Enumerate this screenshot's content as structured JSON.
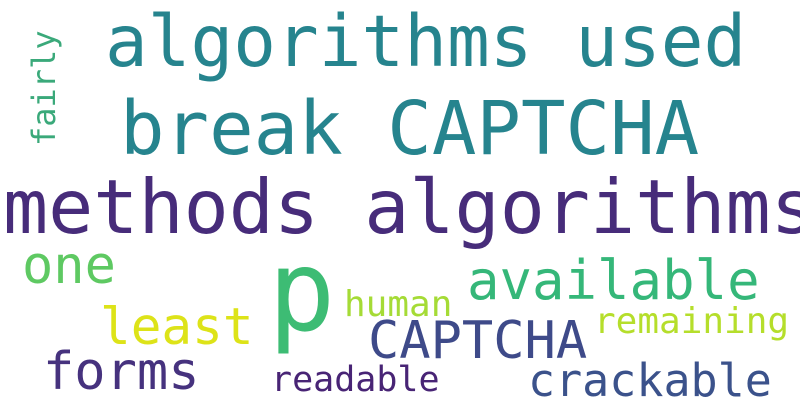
{
  "words": [
    {
      "text": "algorithms used",
      "color": "#26848e"
    },
    {
      "text": "break CAPTCHA",
      "color": "#26848e"
    },
    {
      "text": "methods algorithms",
      "color": "#472c7a"
    },
    {
      "text": "fairly",
      "color": "#3aa97a"
    },
    {
      "text": "one",
      "color": "#5ec962"
    },
    {
      "text": "p",
      "color": "#3dbc74"
    },
    {
      "text": "available",
      "color": "#35b779"
    },
    {
      "text": "human",
      "color": "#a5db36"
    },
    {
      "text": "least",
      "color": "#dde318"
    },
    {
      "text": "CAPTCHA",
      "color": "#3e4a89"
    },
    {
      "text": "remaining",
      "color": "#b5de2b"
    },
    {
      "text": "forms",
      "color": "#46327e"
    },
    {
      "text": "readable",
      "color": "#482475"
    },
    {
      "text": "crackable",
      "color": "#3b528b"
    }
  ]
}
